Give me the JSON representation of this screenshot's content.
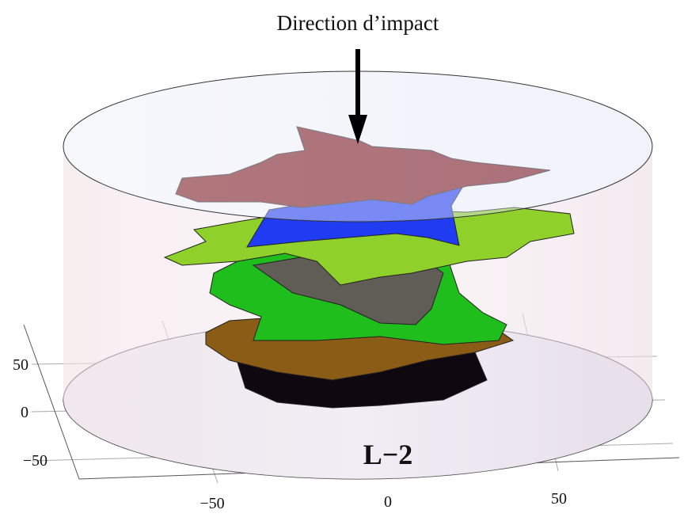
{
  "title": "Direction d’impact",
  "label": "L−2",
  "axes": {
    "y_tick_labels": [
      "50",
      "0",
      "−50"
    ],
    "x_tick_labels": [
      "−50",
      "0",
      "50"
    ]
  }
}
